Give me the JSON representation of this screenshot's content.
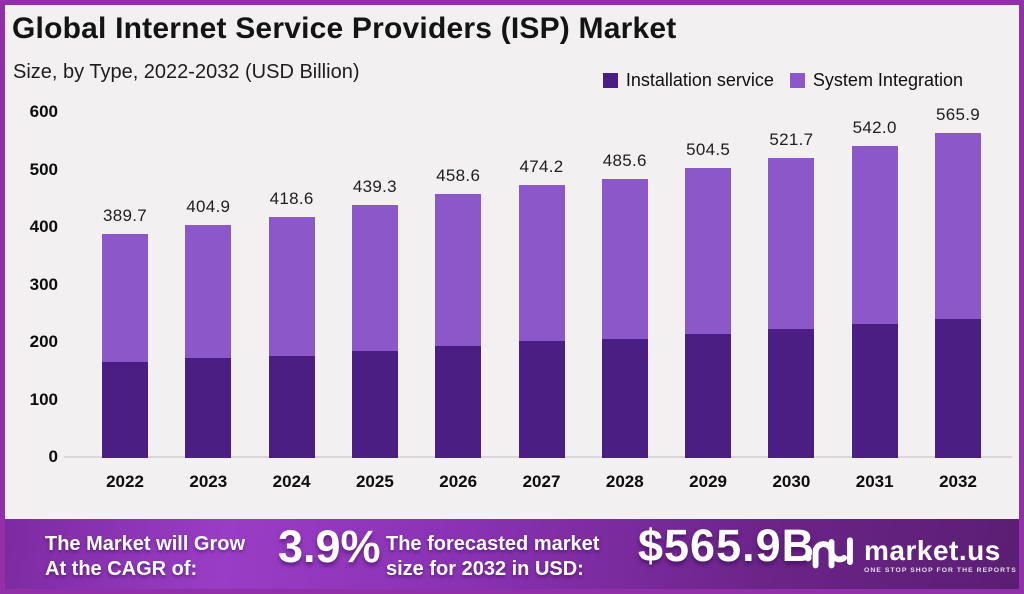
{
  "header": {
    "title": "Global Internet Service Providers (ISP) Market",
    "subtitle": "Size, by Type, 2022-2032 (USD Billion)"
  },
  "chart_data": {
    "type": "bar",
    "stacked": true,
    "title": "Global Internet Service Providers (ISP) Market",
    "subtitle": "Size, by Type, 2022-2032 (USD Billion)",
    "categories": [
      "2022",
      "2023",
      "2024",
      "2025",
      "2026",
      "2027",
      "2028",
      "2029",
      "2030",
      "2031",
      "2032"
    ],
    "series": [
      {
        "name": "Installation service",
        "color": "#4A1E82",
        "values": [
          167.6,
          173.4,
          178.0,
          186.6,
          194.8,
          204.0,
          207.0,
          215.1,
          223.8,
          233.0,
          241.7
        ]
      },
      {
        "name": "System Integration",
        "color": "#8C57C9",
        "values": [
          222.1,
          231.5,
          240.6,
          252.7,
          263.8,
          270.2,
          278.6,
          289.4,
          297.9,
          309.0,
          324.2
        ]
      }
    ],
    "totals": [
      389.7,
      404.9,
      418.6,
      439.3,
      458.6,
      474.2,
      485.6,
      504.5,
      521.7,
      542.0,
      565.9
    ],
    "total_labels": [
      "389.7",
      "404.9",
      "418.6",
      "439.3",
      "458.6",
      "474.2",
      "485.6",
      "504.5",
      "521.7",
      "542.0",
      "565.9"
    ],
    "xlabel": "",
    "ylabel": "",
    "ylim": [
      0,
      600
    ],
    "yticks": [
      0,
      100,
      200,
      300,
      400,
      500,
      600
    ],
    "grid": false,
    "legend_position": "top-right"
  },
  "banner": {
    "cagr_label_line1": "The Market will Grow",
    "cagr_label_line2": "At the CAGR of:",
    "cagr_value": "3.9%",
    "forecast_label_line1": "The forecasted market",
    "forecast_label_line2": "size for 2032 in USD:",
    "forecast_value": "$565.9B",
    "logo_text": "market.us",
    "logo_tagline": "ONE STOP SHOP FOR THE REPORTS"
  },
  "colors": {
    "installation_bar": "#4A1E82",
    "integration_bar": "#8C57C9",
    "frame_border": "#9130A8",
    "page_background": "#F2F0F1",
    "banner_gradient_left": "#9A3DC6",
    "banner_gradient_right": "#5A1E73",
    "text_dark": "#141414",
    "banner_text": "#FFFFFF"
  },
  "icons": {
    "logo_mark": "market-us-logo-mark"
  }
}
